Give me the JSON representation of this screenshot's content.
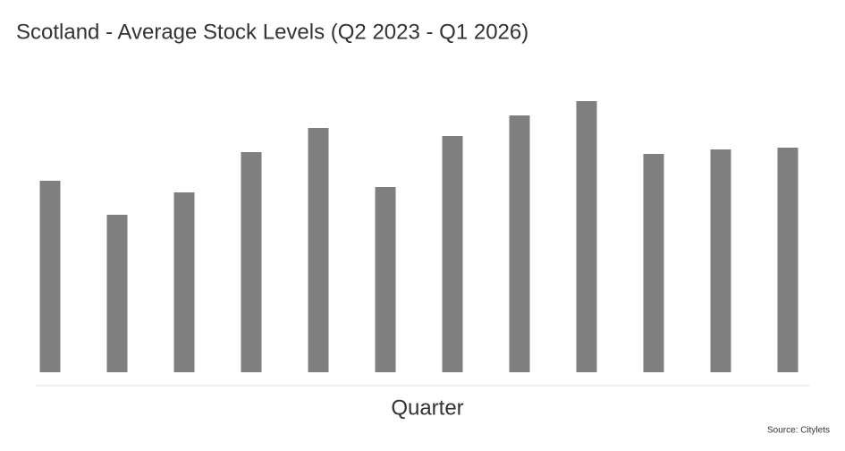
{
  "chart_data": {
    "type": "bar",
    "title": "Scotland - Average Stock Levels (Q2 2023 - Q1 2026)",
    "x_label": "Quarter",
    "source": "Source: Citylets",
    "categories": [
      null,
      null,
      null,
      null,
      null,
      null,
      null,
      null,
      null,
      null,
      null,
      null
    ],
    "values": [
      214,
      176,
      201,
      246,
      273,
      207,
      264,
      287,
      303,
      244,
      249,
      251
    ],
    "color": "#7f7f7f",
    "ylim": [
      0,
      340
    ],
    "grid": false
  }
}
